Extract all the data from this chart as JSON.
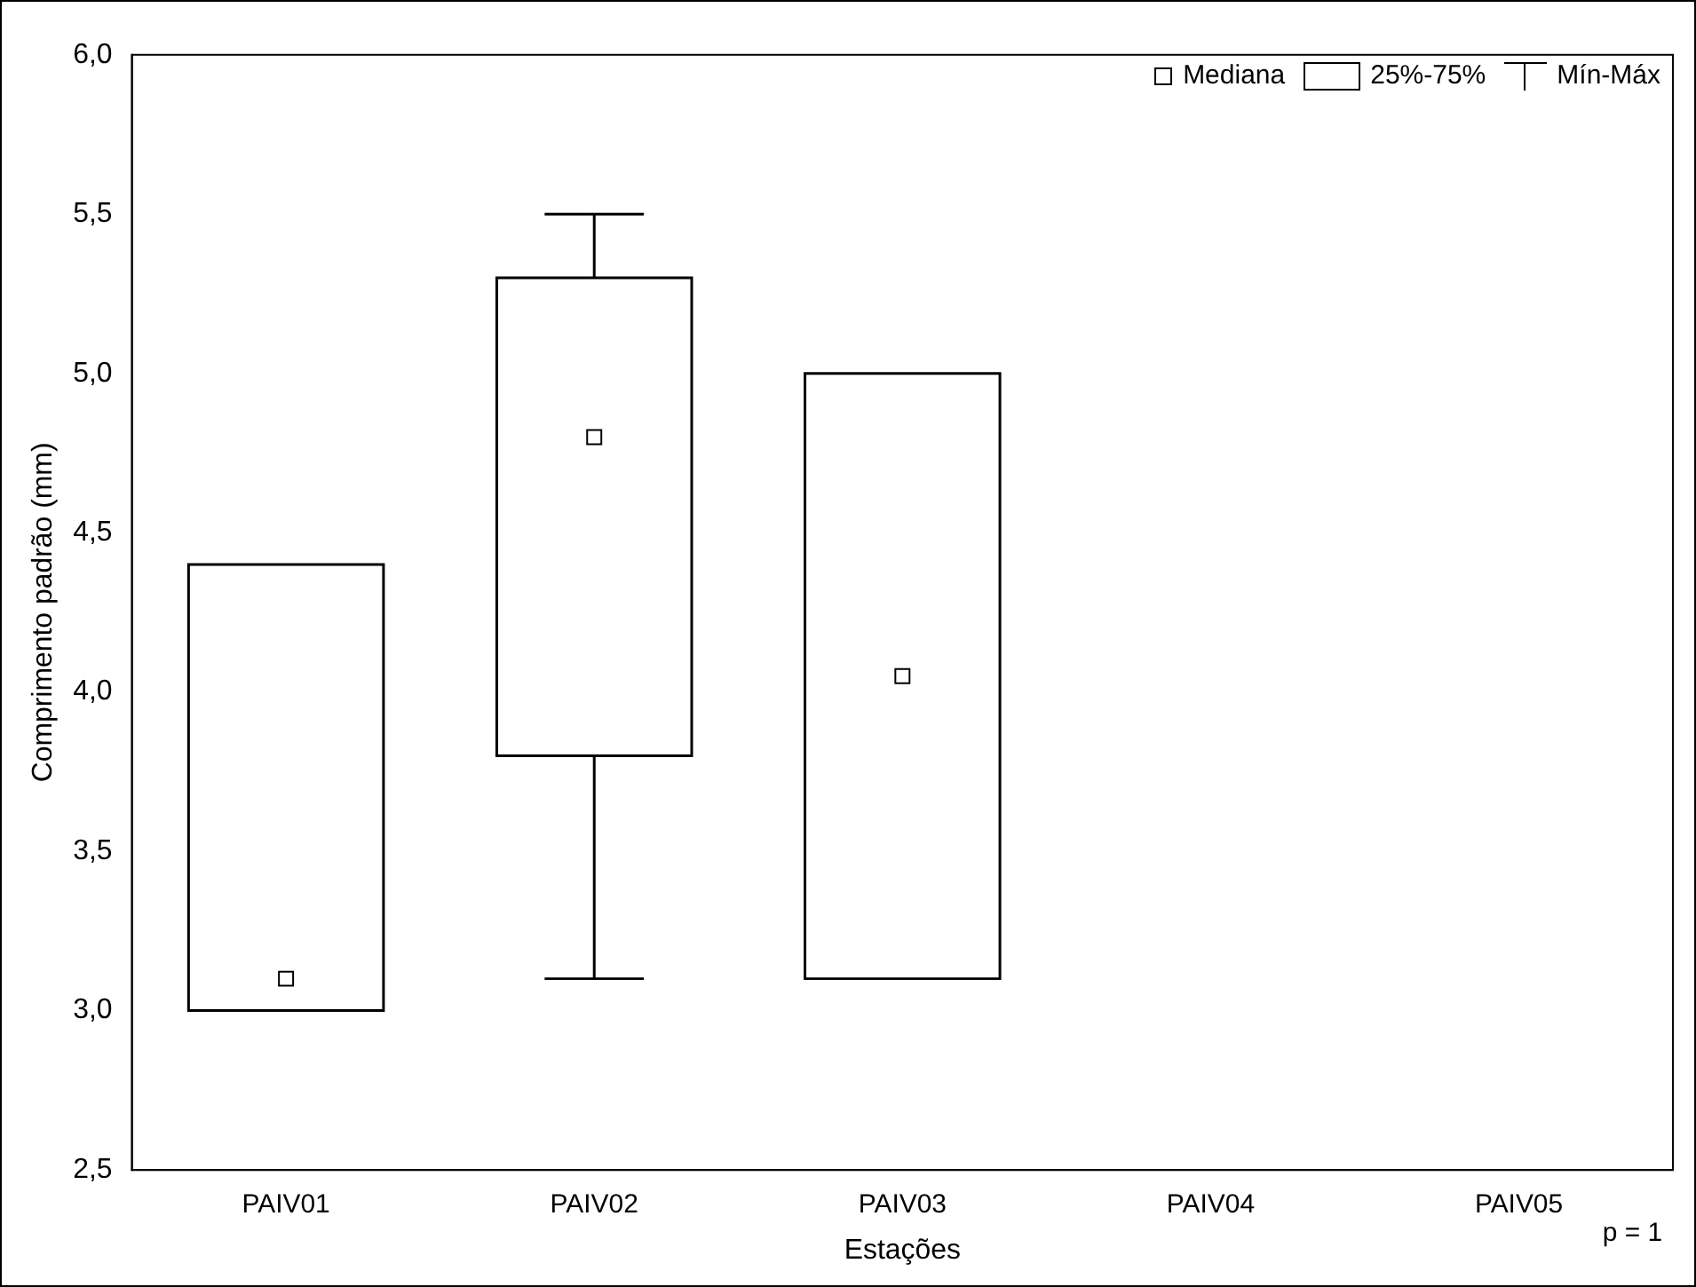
{
  "chart_data": {
    "type": "box",
    "xlabel": "Estações",
    "ylabel": "Comprimento padrão (mm)",
    "categories": [
      "PAIV01",
      "PAIV02",
      "PAIV03",
      "PAIV04",
      "PAIV05"
    ],
    "boxes": [
      {
        "low": 3.0,
        "q1": 3.0,
        "median": 3.1,
        "q3": 4.4,
        "high": 4.4
      },
      {
        "low": 3.1,
        "q1": 3.8,
        "median": 4.8,
        "q3": 5.3,
        "high": 5.5
      },
      {
        "low": 3.1,
        "q1": 3.1,
        "median": 4.05,
        "q3": 5.0,
        "high": 5.0
      },
      null,
      null
    ],
    "ylim": [
      2.5,
      6.0
    ],
    "yticks": [
      {
        "value": 2.5,
        "label": "2,5"
      },
      {
        "value": 3.0,
        "label": "3,0"
      },
      {
        "value": 3.5,
        "label": "3,5"
      },
      {
        "value": 4.0,
        "label": "4,0"
      },
      {
        "value": 4.5,
        "label": "4,5"
      },
      {
        "value": 5.0,
        "label": "5,0"
      },
      {
        "value": 5.5,
        "label": "5,5"
      },
      {
        "value": 6.0,
        "label": "6,0"
      }
    ],
    "grid": false,
    "marker": "square",
    "annotations": [
      "Mediana",
      "25%-75%",
      "Mín-Máx",
      "p = 1"
    ]
  }
}
